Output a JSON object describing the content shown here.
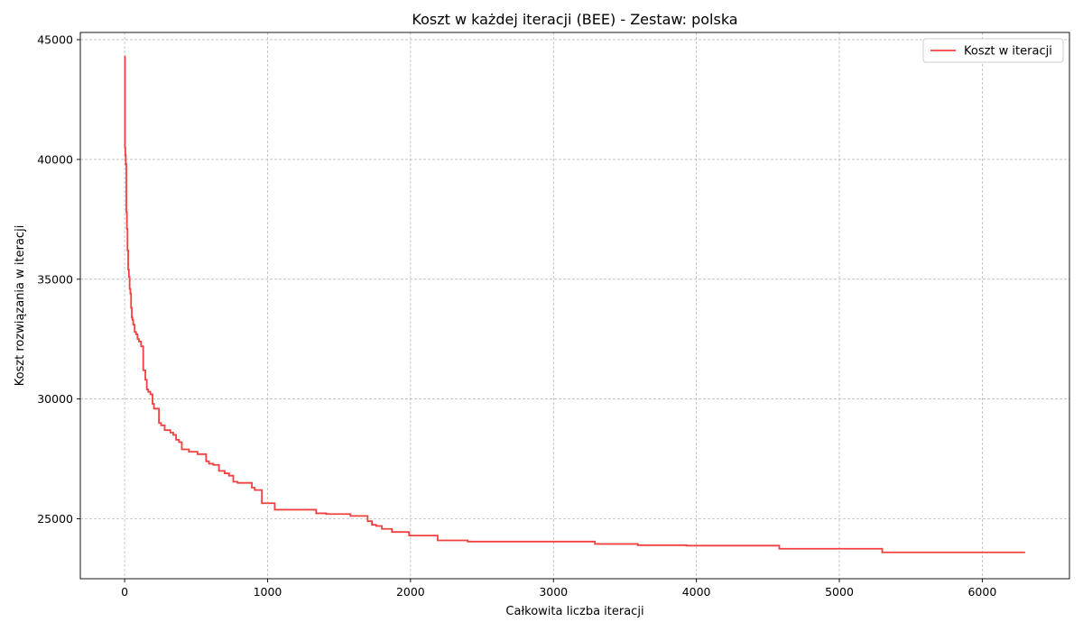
{
  "chart_data": {
    "type": "line",
    "title": "Koszt w każdej iteracji (BEE) - Zestaw: polska",
    "xlabel": "Całkowita liczba iteracji",
    "ylabel": "Koszt rozwiązania w iteracji",
    "xlim": [
      -310,
      6610
    ],
    "ylim": [
      22500,
      45300
    ],
    "xticks": [
      0,
      1000,
      2000,
      3000,
      4000,
      5000,
      6000
    ],
    "yticks": [
      25000,
      30000,
      35000,
      40000,
      45000
    ],
    "grid": true,
    "legend_position": "top-right",
    "series": [
      {
        "name": "Koszt w iteracji",
        "color": "#f04040",
        "step": true,
        "x": [
          0,
          2,
          5,
          8,
          12,
          16,
          20,
          25,
          30,
          35,
          40,
          45,
          50,
          55,
          60,
          70,
          80,
          90,
          100,
          115,
          130,
          145,
          155,
          165,
          180,
          195,
          205,
          225,
          240,
          255,
          270,
          280,
          295,
          320,
          340,
          360,
          380,
          400,
          420,
          450,
          480,
          510,
          540,
          570,
          590,
          600,
          620,
          660,
          700,
          730,
          760,
          790,
          890,
          910,
          960,
          1000,
          1050,
          1340,
          1410,
          1580,
          1700,
          1730,
          1760,
          1800,
          1870,
          1990,
          2000,
          2190,
          2400,
          3290,
          3590,
          3930,
          4580,
          5300,
          6300
        ],
        "y": [
          44300,
          40500,
          40200,
          39800,
          37800,
          37100,
          36200,
          35400,
          35100,
          34600,
          34400,
          33800,
          33400,
          33300,
          33100,
          32800,
          32700,
          32500,
          32400,
          32200,
          31200,
          30800,
          30400,
          30300,
          30200,
          29800,
          29600,
          29600,
          29000,
          28900,
          28900,
          28700,
          28700,
          28600,
          28500,
          28300,
          28200,
          27900,
          27900,
          27800,
          27800,
          27700,
          27700,
          27400,
          27300,
          27300,
          27250,
          27000,
          26900,
          26800,
          26550,
          26500,
          26300,
          26200,
          25650,
          25650,
          25380,
          25230,
          25200,
          25120,
          24900,
          24750,
          24700,
          24580,
          24450,
          24300,
          24300,
          24100,
          24050,
          23950,
          23900,
          23880,
          23750,
          23600,
          23600
        ]
      }
    ]
  }
}
